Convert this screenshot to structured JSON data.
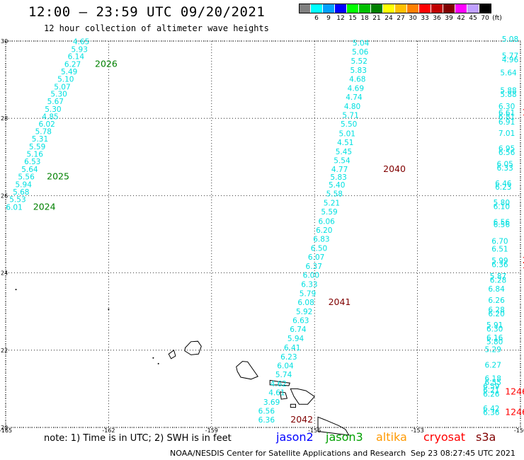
{
  "header": {
    "title": "12:00 — 23:59 UTC 09/20/2021",
    "subtitle": "12 hour collection of altimeter wave heights"
  },
  "legend": {
    "unit": "(ft)",
    "bins": [
      {
        "label": "3",
        "color": "#808080"
      },
      {
        "label": "6",
        "color": "#00ffff"
      },
      {
        "label": "9",
        "color": "#00a0ff"
      },
      {
        "label": "12",
        "color": "#0000ff"
      },
      {
        "label": "15",
        "color": "#00ff00"
      },
      {
        "label": "18",
        "color": "#00c000"
      },
      {
        "label": "21",
        "color": "#008000"
      },
      {
        "label": "24",
        "color": "#ffff00"
      },
      {
        "label": "27",
        "color": "#ffc000"
      },
      {
        "label": "30",
        "color": "#ff8000"
      },
      {
        "label": "33",
        "color": "#ff0000"
      },
      {
        "label": "36",
        "color": "#c00000"
      },
      {
        "label": "39",
        "color": "#800000"
      },
      {
        "label": "42",
        "color": "#ff00ff"
      },
      {
        "label": "45",
        "color": "#c0a0ff"
      },
      {
        "label": "70",
        "color": "#000000"
      }
    ]
  },
  "axes": {
    "lat_ticks": [
      "30",
      "28",
      "26",
      "24",
      "22",
      "20"
    ],
    "lon_ticks": [
      "-165",
      "-162",
      "-159",
      "-156",
      "-153",
      "-150"
    ]
  },
  "tracks": [
    {
      "name": "track-left",
      "color": "#00e0e0",
      "points": [
        {
          "lon": -162.8,
          "lat": 29.92,
          "value": "4.65"
        },
        {
          "lon": -162.85,
          "lat": 29.72,
          "value": "5.93"
        },
        {
          "lon": -162.95,
          "lat": 29.53,
          "value": "6.14"
        },
        {
          "lon": -163.05,
          "lat": 29.33,
          "value": "6.27"
        },
        {
          "lon": -163.15,
          "lat": 29.14,
          "value": "5.49"
        },
        {
          "lon": -163.25,
          "lat": 28.95,
          "value": "5.10"
        },
        {
          "lon": -163.35,
          "lat": 28.75,
          "value": "5.07"
        },
        {
          "lon": -163.45,
          "lat": 28.56,
          "value": "5.30"
        },
        {
          "lon": -163.55,
          "lat": 28.37,
          "value": "5.67"
        },
        {
          "lon": -163.62,
          "lat": 28.17,
          "value": "5.30"
        },
        {
          "lon": -163.7,
          "lat": 27.98,
          "value": "4.85"
        },
        {
          "lon": -163.8,
          "lat": 27.78,
          "value": "6.02"
        },
        {
          "lon": -163.9,
          "lat": 27.59,
          "value": "5.78"
        },
        {
          "lon": -164.0,
          "lat": 27.4,
          "value": "5.31"
        },
        {
          "lon": -164.08,
          "lat": 27.2,
          "value": "5.59"
        },
        {
          "lon": -164.15,
          "lat": 27.01,
          "value": "5.16"
        },
        {
          "lon": -164.22,
          "lat": 26.81,
          "value": "6.53"
        },
        {
          "lon": -164.3,
          "lat": 26.61,
          "value": "5.64"
        },
        {
          "lon": -164.4,
          "lat": 26.42,
          "value": "5.56"
        },
        {
          "lon": -164.48,
          "lat": 26.22,
          "value": "5.94"
        },
        {
          "lon": -164.55,
          "lat": 26.03,
          "value": "5.68"
        },
        {
          "lon": -164.65,
          "lat": 25.83,
          "value": "5.53"
        },
        {
          "lon": -164.75,
          "lat": 25.63,
          "value": "6.01"
        }
      ],
      "time_labels": [
        {
          "lon": -162.4,
          "lat": 29.33,
          "text": "2026",
          "color": "#008000"
        },
        {
          "lon": -163.8,
          "lat": 26.42,
          "text": "2025",
          "color": "#008000"
        },
        {
          "lon": -164.2,
          "lat": 25.63,
          "text": "2024",
          "color": "#008000"
        }
      ]
    },
    {
      "name": "track-middle",
      "color": "#00e0e0",
      "points": [
        {
          "lon": -154.65,
          "lat": 29.88,
          "value": "5.04"
        },
        {
          "lon": -154.67,
          "lat": 29.65,
          "value": "5.06"
        },
        {
          "lon": -154.7,
          "lat": 29.41,
          "value": "5.52"
        },
        {
          "lon": -154.72,
          "lat": 29.18,
          "value": "5.83"
        },
        {
          "lon": -154.75,
          "lat": 28.95,
          "value": "4.68"
        },
        {
          "lon": -154.8,
          "lat": 28.71,
          "value": "4.69"
        },
        {
          "lon": -154.85,
          "lat": 28.48,
          "value": "4.74"
        },
        {
          "lon": -154.9,
          "lat": 28.24,
          "value": "4.80"
        },
        {
          "lon": -154.95,
          "lat": 28.01,
          "value": "5.71"
        },
        {
          "lon": -155.0,
          "lat": 27.78,
          "value": "5.50"
        },
        {
          "lon": -155.05,
          "lat": 27.54,
          "value": "5.01"
        },
        {
          "lon": -155.1,
          "lat": 27.31,
          "value": "4.51"
        },
        {
          "lon": -155.15,
          "lat": 27.07,
          "value": "5.45"
        },
        {
          "lon": -155.2,
          "lat": 26.84,
          "value": "5.54"
        },
        {
          "lon": -155.27,
          "lat": 26.61,
          "value": "4.77"
        },
        {
          "lon": -155.3,
          "lat": 26.41,
          "value": "5.83"
        },
        {
          "lon": -155.35,
          "lat": 26.21,
          "value": "5.40"
        },
        {
          "lon": -155.42,
          "lat": 25.98,
          "value": "5.58"
        },
        {
          "lon": -155.5,
          "lat": 25.74,
          "value": "5.21"
        },
        {
          "lon": -155.57,
          "lat": 25.51,
          "value": "5.59"
        },
        {
          "lon": -155.65,
          "lat": 25.27,
          "value": "6.06"
        },
        {
          "lon": -155.72,
          "lat": 25.04,
          "value": "6.20"
        },
        {
          "lon": -155.8,
          "lat": 24.81,
          "value": "6.83"
        },
        {
          "lon": -155.87,
          "lat": 24.57,
          "value": "6.50"
        },
        {
          "lon": -155.95,
          "lat": 24.34,
          "value": "6.07"
        },
        {
          "lon": -156.02,
          "lat": 24.1,
          "value": "6.37"
        },
        {
          "lon": -156.1,
          "lat": 23.87,
          "value": "6.00"
        },
        {
          "lon": -156.15,
          "lat": 23.64,
          "value": "6.33"
        },
        {
          "lon": -156.2,
          "lat": 23.4,
          "value": "5.79"
        },
        {
          "lon": -156.25,
          "lat": 23.17,
          "value": "6.08"
        },
        {
          "lon": -156.3,
          "lat": 22.93,
          "value": "5.92"
        },
        {
          "lon": -156.4,
          "lat": 22.7,
          "value": "6.63"
        },
        {
          "lon": -156.48,
          "lat": 22.47,
          "value": "6.74"
        },
        {
          "lon": -156.55,
          "lat": 22.23,
          "value": "5.94"
        },
        {
          "lon": -156.65,
          "lat": 22.0,
          "value": "6.41"
        },
        {
          "lon": -156.75,
          "lat": 21.76,
          "value": "6.23"
        },
        {
          "lon": -156.85,
          "lat": 21.53,
          "value": "6.04"
        },
        {
          "lon": -156.9,
          "lat": 21.3,
          "value": "5.74"
        },
        {
          "lon": -157.05,
          "lat": 21.06,
          "value": "4.62"
        },
        {
          "lon": -157.1,
          "lat": 20.83,
          "value": "4.61"
        },
        {
          "lon": -157.25,
          "lat": 20.59,
          "value": "3.69"
        },
        {
          "lon": -157.4,
          "lat": 20.36,
          "value": "6.56"
        },
        {
          "lon": -157.4,
          "lat": 20.13,
          "value": "6.36"
        }
      ],
      "time_labels": [
        {
          "lon": -154.0,
          "lat": 26.61,
          "text": "2040",
          "color": "#800000"
        },
        {
          "lon": -155.6,
          "lat": 23.17,
          "text": "2041",
          "color": "#800000"
        },
        {
          "lon": -156.7,
          "lat": 20.13,
          "text": "2042",
          "color": "#800000"
        }
      ]
    },
    {
      "name": "track-right",
      "color": "#00e0e0",
      "points": [
        {
          "lon": -150.3,
          "lat": 29.98,
          "value": "5.08"
        },
        {
          "lon": -150.3,
          "lat": 29.55,
          "value": "5.77"
        },
        {
          "lon": -150.3,
          "lat": 29.45,
          "value": "4.96"
        },
        {
          "lon": -150.35,
          "lat": 29.11,
          "value": "5.64"
        },
        {
          "lon": -150.35,
          "lat": 28.65,
          "value": "5.88"
        },
        {
          "lon": -150.35,
          "lat": 28.55,
          "value": "5.88"
        },
        {
          "lon": -150.4,
          "lat": 28.24,
          "value": "6.30"
        },
        {
          "lon": -150.4,
          "lat": 28.08,
          "value": "6.61"
        },
        {
          "lon": -150.4,
          "lat": 27.98,
          "value": "6.81"
        },
        {
          "lon": -150.4,
          "lat": 27.84,
          "value": "6.91"
        },
        {
          "lon": -150.4,
          "lat": 27.55,
          "value": "7.01"
        },
        {
          "lon": -150.4,
          "lat": 27.15,
          "value": "6.95"
        },
        {
          "lon": -150.4,
          "lat": 27.05,
          "value": "6.56"
        },
        {
          "lon": -150.45,
          "lat": 26.75,
          "value": "6.05"
        },
        {
          "lon": -150.45,
          "lat": 26.65,
          "value": "6.33"
        },
        {
          "lon": -150.5,
          "lat": 26.25,
          "value": "6.46"
        },
        {
          "lon": -150.5,
          "lat": 26.15,
          "value": "6.23"
        },
        {
          "lon": -150.55,
          "lat": 25.75,
          "value": "5.80"
        },
        {
          "lon": -150.55,
          "lat": 25.65,
          "value": "6.10"
        },
        {
          "lon": -150.55,
          "lat": 25.25,
          "value": "6.56"
        },
        {
          "lon": -150.55,
          "lat": 25.18,
          "value": "6.56"
        },
        {
          "lon": -150.6,
          "lat": 24.75,
          "value": "6.70"
        },
        {
          "lon": -150.6,
          "lat": 24.55,
          "value": "6.51"
        },
        {
          "lon": -150.6,
          "lat": 24.25,
          "value": "5.99"
        },
        {
          "lon": -150.6,
          "lat": 24.15,
          "value": "6.36"
        },
        {
          "lon": -150.65,
          "lat": 23.85,
          "value": "5.87"
        },
        {
          "lon": -150.65,
          "lat": 23.75,
          "value": "6.28"
        },
        {
          "lon": -150.7,
          "lat": 23.52,
          "value": "6.84"
        },
        {
          "lon": -150.7,
          "lat": 23.22,
          "value": "6.26"
        },
        {
          "lon": -150.7,
          "lat": 22.98,
          "value": "6.28"
        },
        {
          "lon": -150.7,
          "lat": 22.88,
          "value": "6.20"
        },
        {
          "lon": -150.75,
          "lat": 22.58,
          "value": "5.91"
        },
        {
          "lon": -150.75,
          "lat": 22.48,
          "value": "6.30"
        },
        {
          "lon": -150.75,
          "lat": 22.25,
          "value": "6.16"
        },
        {
          "lon": -150.75,
          "lat": 22.15,
          "value": "5.80"
        },
        {
          "lon": -150.8,
          "lat": 21.95,
          "value": "5.29"
        },
        {
          "lon": -150.8,
          "lat": 21.55,
          "value": "6.27"
        },
        {
          "lon": -150.8,
          "lat": 21.2,
          "value": "6.18"
        },
        {
          "lon": -150.8,
          "lat": 21.1,
          "value": "6.55"
        },
        {
          "lon": -150.85,
          "lat": 21.0,
          "value": "6.59"
        },
        {
          "lon": -150.85,
          "lat": 20.9,
          "value": "6.21"
        },
        {
          "lon": -150.85,
          "lat": 20.8,
          "value": "6.26"
        },
        {
          "lon": -150.85,
          "lat": 20.42,
          "value": "6.42"
        },
        {
          "lon": -150.85,
          "lat": 20.32,
          "value": "6.36"
        }
      ],
      "time_labels": []
    },
    {
      "name": "track-cryosat",
      "color": "#ff0000",
      "points": [],
      "time_labels": [
        {
          "lon": -149.95,
          "lat": 28.08,
          "text": "1",
          "color": "#ff0000"
        },
        {
          "lon": -149.95,
          "lat": 24.25,
          "text": "124",
          "color": "#ff0000"
        },
        {
          "lon": -149.95,
          "lat": 24.12,
          "text": "1245",
          "color": "#ff0000"
        },
        {
          "lon": -150.45,
          "lat": 20.85,
          "text": "1246",
          "color": "#ff0000"
        },
        {
          "lon": -150.45,
          "lat": 20.32,
          "text": "1246",
          "color": "#ff0000"
        }
      ]
    }
  ],
  "notes": {
    "note_text": "note:  1) Time is in UTC;  2) SWH is in feet",
    "missions": [
      {
        "label": "jason2",
        "color": "#0000ff"
      },
      {
        "label": "jason3",
        "color": "#00a000"
      },
      {
        "label": "altika",
        "color": "#ff9900"
      },
      {
        "label": "cryosat",
        "color": "#ff0000"
      },
      {
        "label": "s3a",
        "color": "#800000"
      }
    ],
    "credit": "NOAA/NESDIS Center for Satellite Applications and Research",
    "generated": "Sep 23 08:27:45 UTC 2021"
  }
}
